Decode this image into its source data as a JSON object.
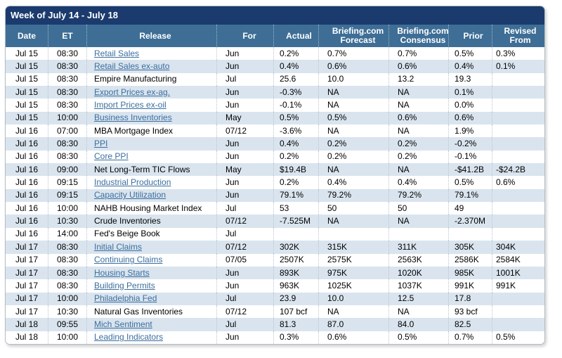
{
  "panel": {
    "title": "Week of July 14 - July 18"
  },
  "colors": {
    "title_bar": "#1b3a6d",
    "header_bg": "#3e6e96",
    "row_alt": "#d9e4ee",
    "link": "#3c6e9f"
  },
  "columns": [
    {
      "key": "date",
      "label": "Date"
    },
    {
      "key": "et",
      "label": "ET"
    },
    {
      "key": "release",
      "label": "Release"
    },
    {
      "key": "for",
      "label": "For"
    },
    {
      "key": "actual",
      "label": "Actual"
    },
    {
      "key": "forecast",
      "label": "Briefing.com Forecast"
    },
    {
      "key": "consensus",
      "label": "Briefing.com Consensus"
    },
    {
      "key": "prior",
      "label": "Prior"
    },
    {
      "key": "revised",
      "label": "Revised From"
    }
  ],
  "rows": [
    {
      "date": "Jul 15",
      "et": "08:30",
      "release": "Retail Sales",
      "link": true,
      "for": "Jun",
      "actual": "0.2%",
      "forecast": "0.7%",
      "consensus": "0.7%",
      "prior": "0.5%",
      "revised": "0.3%"
    },
    {
      "date": "Jul 15",
      "et": "08:30",
      "release": "Retail Sales ex-auto",
      "link": true,
      "for": "Jun",
      "actual": "0.4%",
      "forecast": "0.6%",
      "consensus": "0.6%",
      "prior": "0.4%",
      "revised": "0.1%"
    },
    {
      "date": "Jul 15",
      "et": "08:30",
      "release": "Empire Manufacturing",
      "link": false,
      "for": "Jul",
      "actual": "25.6",
      "forecast": "10.0",
      "consensus": "13.2",
      "prior": "19.3",
      "revised": ""
    },
    {
      "date": "Jul 15",
      "et": "08:30",
      "release": "Export Prices ex-ag.",
      "link": true,
      "for": "Jun",
      "actual": "-0.3%",
      "forecast": "NA",
      "consensus": "NA",
      "prior": "0.1%",
      "revised": ""
    },
    {
      "date": "Jul 15",
      "et": "08:30",
      "release": "Import Prices ex-oil",
      "link": true,
      "for": "Jun",
      "actual": "-0.1%",
      "forecast": "NA",
      "consensus": "NA",
      "prior": "0.0%",
      "revised": ""
    },
    {
      "date": "Jul 15",
      "et": "10:00",
      "release": "Business Inventories",
      "link": true,
      "for": "May",
      "actual": "0.5%",
      "forecast": "0.5%",
      "consensus": "0.6%",
      "prior": "0.6%",
      "revised": ""
    },
    {
      "date": "Jul 16",
      "et": "07:00",
      "release": "MBA Mortgage Index",
      "link": false,
      "for": "07/12",
      "actual": "-3.6%",
      "forecast": "NA",
      "consensus": "NA",
      "prior": "1.9%",
      "revised": ""
    },
    {
      "date": "Jul 16",
      "et": "08:30",
      "release": "PPI",
      "link": true,
      "for": "Jun",
      "actual": "0.4%",
      "forecast": "0.2%",
      "consensus": "0.2%",
      "prior": "-0.2%",
      "revised": ""
    },
    {
      "date": "Jul 16",
      "et": "08:30",
      "release": "Core PPI",
      "link": true,
      "for": "Jun",
      "actual": "0.2%",
      "forecast": "0.2%",
      "consensus": "0.2%",
      "prior": "-0.1%",
      "revised": ""
    },
    {
      "date": "Jul 16",
      "et": "09:00",
      "release": "Net Long-Term TIC Flows",
      "link": false,
      "for": "May",
      "actual": "$19.4B",
      "forecast": "NA",
      "consensus": "NA",
      "prior": "-$41.2B",
      "revised": "-$24.2B"
    },
    {
      "date": "Jul 16",
      "et": "09:15",
      "release": "Industrial Production",
      "link": true,
      "for": "Jun",
      "actual": "0.2%",
      "forecast": "0.4%",
      "consensus": "0.4%",
      "prior": "0.5%",
      "revised": "0.6%"
    },
    {
      "date": "Jul 16",
      "et": "09:15",
      "release": "Capacity Utilization",
      "link": true,
      "for": "Jun",
      "actual": "79.1%",
      "forecast": "79.2%",
      "consensus": "79.2%",
      "prior": "79.1%",
      "revised": ""
    },
    {
      "date": "Jul 16",
      "et": "10:00",
      "release": "NAHB Housing Market Index",
      "link": false,
      "for": "Jul",
      "actual": "53",
      "forecast": "50",
      "consensus": "50",
      "prior": "49",
      "revised": ""
    },
    {
      "date": "Jul 16",
      "et": "10:30",
      "release": "Crude Inventories",
      "link": false,
      "for": "07/12",
      "actual": "-7.525M",
      "forecast": "NA",
      "consensus": "NA",
      "prior": "-2.370M",
      "revised": ""
    },
    {
      "date": "Jul 16",
      "et": "14:00",
      "release": "Fed's Beige Book",
      "link": false,
      "for": "Jul",
      "actual": "",
      "forecast": "",
      "consensus": "",
      "prior": "",
      "revised": ""
    },
    {
      "date": "Jul 17",
      "et": "08:30",
      "release": "Initial Claims",
      "link": true,
      "for": "07/12",
      "actual": "302K",
      "forecast": "315K",
      "consensus": "311K",
      "prior": "305K",
      "revised": "304K"
    },
    {
      "date": "Jul 17",
      "et": "08:30",
      "release": "Continuing Claims",
      "link": true,
      "for": "07/05",
      "actual": "2507K",
      "forecast": "2575K",
      "consensus": "2563K",
      "prior": "2586K",
      "revised": "2584K"
    },
    {
      "date": "Jul 17",
      "et": "08:30",
      "release": "Housing Starts",
      "link": true,
      "for": "Jun",
      "actual": "893K",
      "forecast": "975K",
      "consensus": "1020K",
      "prior": "985K",
      "revised": "1001K"
    },
    {
      "date": "Jul 17",
      "et": "08:30",
      "release": "Building Permits",
      "link": true,
      "for": "Jun",
      "actual": "963K",
      "forecast": "1025K",
      "consensus": "1037K",
      "prior": "991K",
      "revised": "991K"
    },
    {
      "date": "Jul 17",
      "et": "10:00",
      "release": "Philadelphia Fed",
      "link": true,
      "for": "Jul",
      "actual": "23.9",
      "forecast": "10.0",
      "consensus": "12.5",
      "prior": "17.8",
      "revised": ""
    },
    {
      "date": "Jul 17",
      "et": "10:30",
      "release": "Natural Gas Inventories",
      "link": false,
      "for": "07/12",
      "actual": "107 bcf",
      "forecast": "NA",
      "consensus": "NA",
      "prior": "93 bcf",
      "revised": ""
    },
    {
      "date": "Jul 18",
      "et": "09:55",
      "release": "Mich Sentiment",
      "link": true,
      "for": "Jul",
      "actual": "81.3",
      "forecast": "87.0",
      "consensus": "84.0",
      "prior": "82.5",
      "revised": ""
    },
    {
      "date": "Jul 18",
      "et": "10:00",
      "release": "Leading Indicators",
      "link": true,
      "for": "Jun",
      "actual": "0.3%",
      "forecast": "0.6%",
      "consensus": "0.5%",
      "prior": "0.7%",
      "revised": "0.5%"
    }
  ]
}
